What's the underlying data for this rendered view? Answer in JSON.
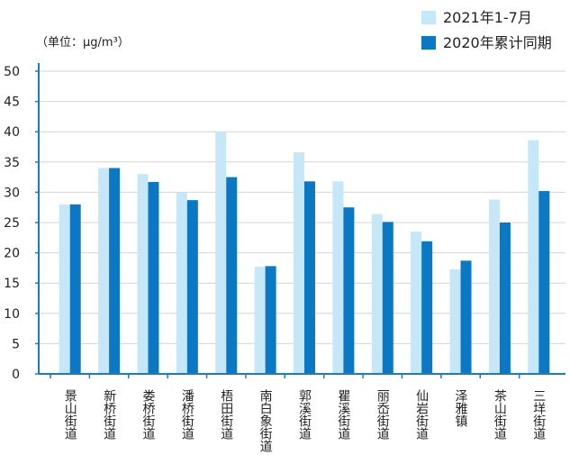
{
  "chart_data": {
    "type": "bar",
    "unit_label": "（单位：μg/m³）",
    "categories": [
      "景山街道",
      "新桥街道",
      "娄桥街道",
      "潘桥街道",
      "梧田街道",
      "南白象街道",
      "郭溪街道",
      "瞿溪街道",
      "丽岙街道",
      "仙岩街道",
      "泽雅镇",
      "茶山街道",
      "三垟街道"
    ],
    "series": [
      {
        "name": "2021年1-7月",
        "color": "#c6e7f8",
        "values": [
          28,
          34,
          33,
          30,
          40,
          17.7,
          36.6,
          31.8,
          26.4,
          23.5,
          17.3,
          28.8,
          38.6
        ]
      },
      {
        "name": "2020年累计同期",
        "color": "#0a78c2",
        "values": [
          28,
          34,
          31.7,
          28.7,
          32.5,
          17.8,
          31.8,
          27.5,
          25.1,
          21.9,
          18.7,
          25,
          30.2
        ]
      }
    ],
    "ylim": [
      0,
      50
    ],
    "yticks": [
      0,
      5,
      10,
      15,
      20,
      25,
      30,
      35,
      40,
      45,
      50
    ],
    "grid": true,
    "legend": "top-right"
  }
}
